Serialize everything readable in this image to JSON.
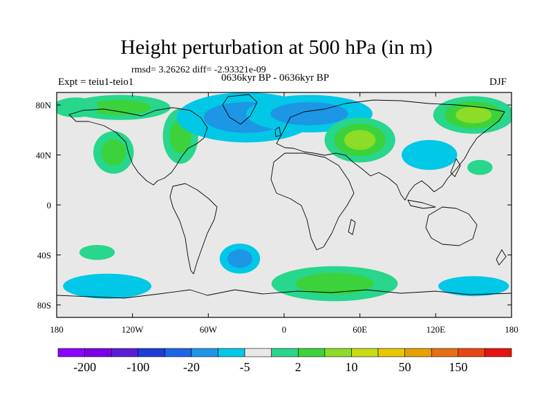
{
  "title": "Height perturbation at 500 hPa (in m)",
  "stats": "rmsd= 3.26262 diff= -2.93321e-09",
  "experiment": "Expt = teiu1-teio1",
  "period": "0636kyr BP - 0636kyr BP",
  "season": "DJF",
  "map": {
    "lon_range": [
      -180,
      180
    ],
    "lat_range": [
      -90,
      90
    ],
    "background_color": "#e8e8e8",
    "x_ticks": [
      {
        "lon": -180,
        "label": "180"
      },
      {
        "lon": -120,
        "label": "120W"
      },
      {
        "lon": -60,
        "label": "60W"
      },
      {
        "lon": 0,
        "label": "0"
      },
      {
        "lon": 60,
        "label": "60E"
      },
      {
        "lon": 120,
        "label": "120E"
      },
      {
        "lon": 180,
        "label": "180"
      }
    ],
    "y_ticks": [
      {
        "lat": 80,
        "label": "80N"
      },
      {
        "lat": 40,
        "label": "40N"
      },
      {
        "lat": 0,
        "label": "0"
      },
      {
        "lat": -40,
        "label": "40S"
      },
      {
        "lat": -80,
        "label": "80S"
      }
    ],
    "anomalies": [
      {
        "lon": -130,
        "lat": 78,
        "rlon": 40,
        "rlat": 10,
        "level": 10
      },
      {
        "lon": -165,
        "lat": 78,
        "rlon": 18,
        "rlat": 8,
        "level": 5
      },
      {
        "lon": -135,
        "lat": 42,
        "rlon": 16,
        "rlat": 17,
        "level": 10
      },
      {
        "lon": -82,
        "lat": 55,
        "rlon": 14,
        "rlat": 22,
        "level": 10
      },
      {
        "lon": -30,
        "lat": 70,
        "rlon": 55,
        "rlat": 20,
        "level": -20
      },
      {
        "lon": 20,
        "lat": 73,
        "rlon": 50,
        "rlat": 15,
        "level": -20
      },
      {
        "lon": 60,
        "lat": 52,
        "rlon": 28,
        "rlat": 18,
        "level": 20
      },
      {
        "lon": 150,
        "lat": 72,
        "rlon": 32,
        "rlat": 15,
        "level": 20
      },
      {
        "lon": 115,
        "lat": 40,
        "rlon": 22,
        "rlat": 12,
        "level": -5
      },
      {
        "lon": 155,
        "lat": 30,
        "rlon": 10,
        "rlat": 6,
        "level": 5
      },
      {
        "lon": -148,
        "lat": -38,
        "rlon": 14,
        "rlat": 6,
        "level": 5
      },
      {
        "lon": -35,
        "lat": -43,
        "rlon": 16,
        "rlat": 12,
        "level": -20
      },
      {
        "lon": -140,
        "lat": -65,
        "rlon": 35,
        "rlat": 10,
        "level": -5
      },
      {
        "lon": 40,
        "lat": -63,
        "rlon": 50,
        "rlat": 14,
        "level": 10
      },
      {
        "lon": 150,
        "lat": -65,
        "rlon": 28,
        "rlat": 8,
        "level": -5
      }
    ]
  },
  "colorbar": {
    "colors": [
      "#8b00ff",
      "#7a00e6",
      "#5a1ed6",
      "#1e3cd6",
      "#1e64e6",
      "#1e96e6",
      "#00c8e6",
      "#e8e8e8",
      "#28d68c",
      "#3cd23c",
      "#8cdc28",
      "#c8dc14",
      "#e6c800",
      "#e6a000",
      "#e66e14",
      "#e64614",
      "#e61414"
    ],
    "labels": [
      {
        "index": 1,
        "text": "-200"
      },
      {
        "index": 3,
        "text": "-100"
      },
      {
        "index": 5,
        "text": "-20"
      },
      {
        "index": 7,
        "text": "-5"
      },
      {
        "index": 9,
        "text": "2"
      },
      {
        "index": 11,
        "text": "10"
      },
      {
        "index": 13,
        "text": "50"
      },
      {
        "index": 15,
        "text": "150"
      }
    ]
  }
}
